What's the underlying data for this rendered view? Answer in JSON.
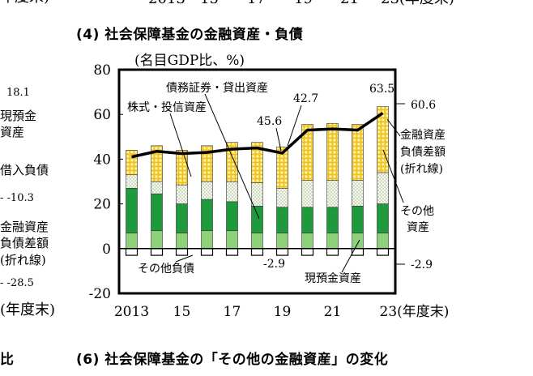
{
  "cropped_top": {
    "year_first": "2013",
    "tick_15": "15",
    "tick_17": "17",
    "tick_19": "19",
    "tick_21": "21",
    "tick_23": "23(年度末)"
  },
  "left_partial": {
    "val_top": "18.1",
    "cash_label_1": "現預金",
    "cash_label_2": "資産",
    "borrow_label": "借入負債",
    "val_mid": "-10.3",
    "net_label_1": "金融資産",
    "net_label_2": "負債差額",
    "net_label_3": "(折れ線)",
    "val_low": "-28.5",
    "year_end": "(年度末)"
  },
  "panel4_title": "(4) 社会保障基金の金融資産・負債",
  "panel6_title": "(6) 社会保障基金の「その他の金融資産」の変化",
  "left_bottom_fragment": "比",
  "colors": {
    "equity": "#8fd07a",
    "loans": "#1e9a3c",
    "debt": "#f6f6ee",
    "other": "#ffd733",
    "liab": "#ffffff",
    "line": "#000000"
  },
  "chart_data": {
    "type": "bar",
    "subtitle": "(名目GDP比、%)",
    "ylim": [
      -20,
      80
    ],
    "yticks": [
      "80",
      "60",
      "40",
      "20",
      "0",
      "-20"
    ],
    "years": [
      2013,
      2014,
      2015,
      2016,
      2017,
      2018,
      2019,
      2020,
      2021,
      2022,
      2023
    ],
    "xtick_labels": [
      "2013",
      "15",
      "17",
      "19",
      "21",
      "23(年度末)"
    ],
    "series": [
      {
        "values": [
          7,
          8,
          7,
          8,
          8,
          7,
          7,
          7,
          7,
          7,
          7
        ]
      },
      {
        "values": [
          20,
          16.5,
          13,
          14,
          13,
          12,
          11.5,
          11.5,
          11.5,
          12,
          13
        ]
      },
      {
        "values": [
          6,
          5.5,
          8.5,
          8,
          9,
          10.5,
          8.5,
          12,
          12,
          11.5,
          14
        ]
      },
      {
        "values": [
          11,
          16,
          15.5,
          16,
          17.5,
          18,
          18.5,
          25,
          25.5,
          25,
          29.5
        ]
      },
      {
        "values": [
          -3,
          -3,
          -3,
          -3,
          -3,
          -3,
          -3,
          -3,
          -3,
          -3,
          -3
        ]
      }
    ],
    "line": {
      "values": [
        41,
        43.5,
        42.5,
        43,
        44.5,
        45,
        42.7,
        53,
        53.5,
        53,
        60.6
      ]
    },
    "annotations": {
      "debt_loans": "債務証券・貸出資産",
      "equity_inv": "株式・投信資産",
      "other_liab": "その他負債",
      "cash": "現預金資産",
      "other_assets_1": "その他",
      "other_assets_2": "資産",
      "net_1": "金融資産",
      "net_2": "負債差額",
      "net_3": "(折れ線)",
      "v456": "45.6",
      "v427": "42.7",
      "v635": "63.5",
      "v606": "60.6",
      "vm29_in": "-2.9",
      "vm29_out": "-2.9"
    }
  }
}
